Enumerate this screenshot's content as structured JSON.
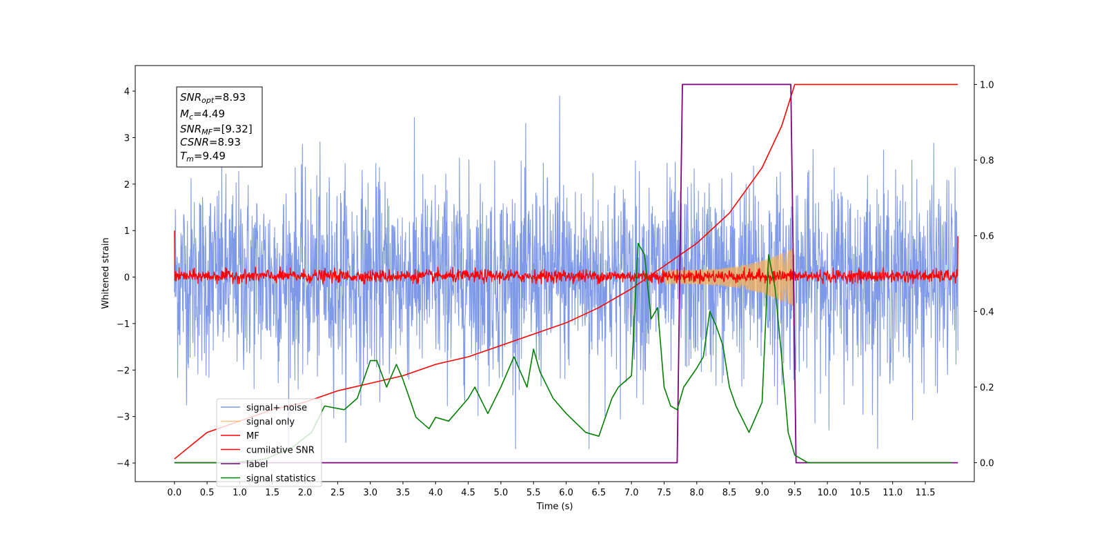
{
  "chart_data": {
    "type": "line",
    "xlabel": "Time (s)",
    "ylabel": "Whitened strain",
    "xlim": [
      -0.6,
      12.25
    ],
    "ylim": [
      -4.4,
      4.55
    ],
    "y2lim": [
      -0.05,
      1.05
    ],
    "x_ticks": [
      "0.0",
      "0.5",
      "1.0",
      "1.5",
      "2.0",
      "2.5",
      "3.0",
      "3.5",
      "4.0",
      "4.5",
      "5.0",
      "5.5",
      "6.0",
      "6.5",
      "7.0",
      "7.5",
      "8.0",
      "8.5",
      "9.0",
      "9.5",
      "10.0",
      "10.5",
      "11.0",
      "11.5"
    ],
    "y_ticks": [
      "4",
      "3",
      "2",
      "1",
      "0",
      "−1",
      "−2",
      "−3",
      "−4"
    ],
    "y2_ticks": [
      "1.0",
      "0.8",
      "0.6",
      "0.4",
      "0.2",
      "0.0"
    ],
    "grid": false,
    "legend_position": "lower-left",
    "info_box": {
      "snr_opt": {
        "base": "SNR",
        "sub": "opt",
        "value": "=8.93"
      },
      "mc": {
        "base": "M",
        "sub": "c",
        "value": "=4.49"
      },
      "snr_mf": {
        "base": "SNR",
        "sub": "MF",
        "value": "=[9.32]"
      },
      "csnr": {
        "base": "CSNR",
        "value": "=8.93"
      },
      "tm": {
        "base": "T",
        "sub": "m",
        "value": "=9.49"
      }
    },
    "series": [
      {
        "name": "signal+ noise",
        "color": "#7893e8",
        "axis": "left",
        "description_level": "noise band roughly -2.5 to 2.5 with spikes up to 4.15 near t=5.9 and down to -4 near t=6.35",
        "peak_max": 4.15,
        "peak_time": 5.9,
        "peak_min": -3.98,
        "trough_time": 6.35
      },
      {
        "name": "signal only",
        "color": "#f5b355",
        "axis": "left",
        "chirp_start": 7.5,
        "chirp_end": 9.5,
        "max_amplitude": 0.65
      },
      {
        "name": "MF",
        "color": "#ff0000",
        "axis": "left",
        "band": [
          -0.15,
          0.2
        ]
      },
      {
        "name": "cumilative SNR",
        "color": "#ff0000",
        "axis": "right",
        "x": [
          0.0,
          0.5,
          1.0,
          1.5,
          2.0,
          2.5,
          3.0,
          3.5,
          4.0,
          4.5,
          5.0,
          5.5,
          6.0,
          6.5,
          7.0,
          7.5,
          8.0,
          8.5,
          9.0,
          9.3,
          9.5,
          12.0
        ],
        "y": [
          0.01,
          0.08,
          0.11,
          0.14,
          0.16,
          0.19,
          0.21,
          0.23,
          0.26,
          0.28,
          0.31,
          0.34,
          0.37,
          0.41,
          0.46,
          0.52,
          0.58,
          0.66,
          0.78,
          0.89,
          1.0,
          1.0
        ]
      },
      {
        "name": "label",
        "color": "#800080",
        "axis": "right",
        "x": [
          0.0,
          7.7,
          7.78,
          9.44,
          9.52,
          12.0
        ],
        "y": [
          0.0,
          0.0,
          1.0,
          1.0,
          0.0,
          0.0
        ]
      },
      {
        "name": "signal statistics",
        "color": "#008000",
        "axis": "right",
        "x": [
          0.0,
          0.4,
          0.9,
          1.4,
          1.8,
          2.1,
          2.3,
          2.6,
          2.8,
          3.0,
          3.1,
          3.25,
          3.4,
          3.5,
          3.7,
          3.9,
          4.0,
          4.2,
          4.5,
          4.6,
          4.8,
          5.0,
          5.2,
          5.4,
          5.5,
          5.6,
          5.8,
          6.0,
          6.3,
          6.5,
          6.7,
          6.8,
          7.0,
          7.1,
          7.2,
          7.3,
          7.4,
          7.5,
          7.6,
          7.7,
          7.8,
          8.0,
          8.1,
          8.2,
          8.3,
          8.4,
          8.5,
          8.6,
          8.8,
          9.0,
          9.1,
          9.2,
          9.3,
          9.4,
          9.5,
          9.7,
          10.0,
          11.0,
          11.9
        ],
        "y": [
          0.0,
          0.0,
          0.0,
          0.01,
          0.04,
          0.08,
          0.15,
          0.14,
          0.17,
          0.27,
          0.27,
          0.2,
          0.26,
          0.22,
          0.12,
          0.09,
          0.12,
          0.11,
          0.17,
          0.2,
          0.13,
          0.2,
          0.28,
          0.2,
          0.3,
          0.24,
          0.17,
          0.13,
          0.08,
          0.07,
          0.17,
          0.2,
          0.23,
          0.58,
          0.55,
          0.38,
          0.41,
          0.2,
          0.15,
          0.14,
          0.2,
          0.25,
          0.28,
          0.4,
          0.36,
          0.31,
          0.2,
          0.15,
          0.08,
          0.16,
          0.55,
          0.46,
          0.28,
          0.08,
          0.02,
          0.0,
          0.0,
          0.0,
          0.0
        ]
      }
    ]
  }
}
